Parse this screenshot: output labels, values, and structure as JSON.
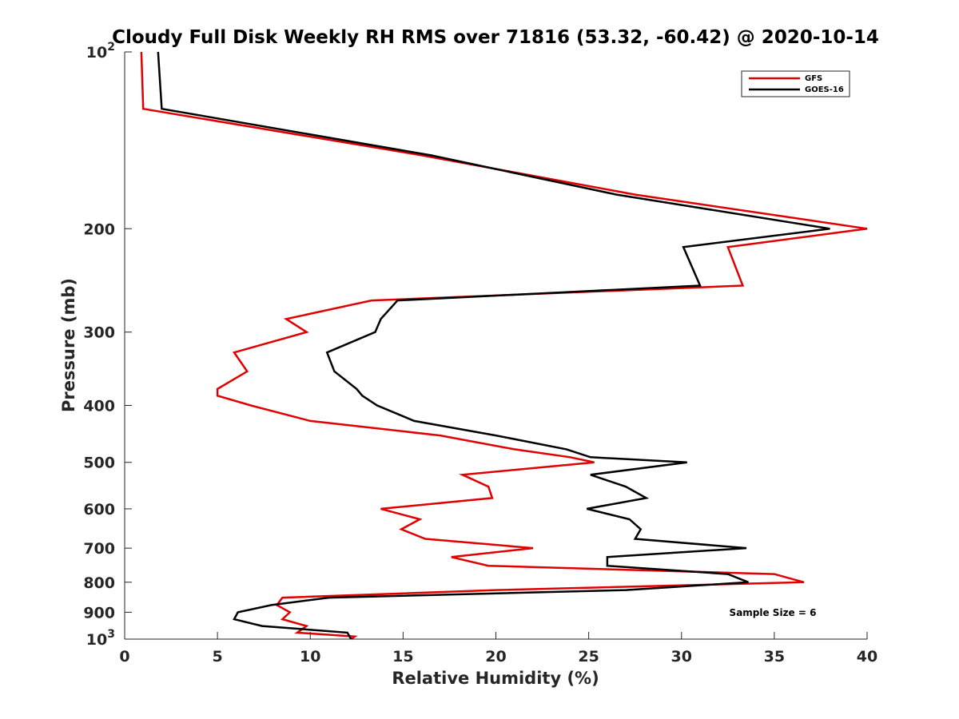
{
  "chart_data": {
    "type": "line",
    "title": "Cloudy Full Disk Weekly RH RMS over 71816 (53.32, -60.42) @ 2020-10-14",
    "xlabel": "Relative Humidity (%)",
    "ylabel": "Pressure (mb)",
    "xlim": [
      0,
      40
    ],
    "ylim": [
      100,
      1000
    ],
    "y_scale": "log",
    "y_reversed": true,
    "grid": false,
    "legend_position": "top-right",
    "x_ticks": [
      "0",
      "5",
      "10",
      "15",
      "20",
      "25",
      "30",
      "35",
      "40"
    ],
    "y_ticks": [
      {
        "value": 100,
        "base": "10",
        "exp": "2"
      },
      {
        "value": 200,
        "label": "200"
      },
      {
        "value": 300,
        "label": "300"
      },
      {
        "value": 400,
        "label": "400"
      },
      {
        "value": 500,
        "label": "500"
      },
      {
        "value": 600,
        "label": "600"
      },
      {
        "value": 700,
        "label": "700"
      },
      {
        "value": 800,
        "label": "800"
      },
      {
        "value": 900,
        "label": "900"
      },
      {
        "value": 1000,
        "base": "10",
        "exp": "3"
      }
    ],
    "annotation": "Sample Size = 6",
    "series": [
      {
        "name": "GFS",
        "color": "#e00000",
        "points": [
          [
            0.9,
            100
          ],
          [
            1.0,
            125
          ],
          [
            16.0,
            150
          ],
          [
            27.5,
            175
          ],
          [
            40.0,
            200
          ],
          [
            32.5,
            215
          ],
          [
            33.3,
            250
          ],
          [
            13.3,
            265
          ],
          [
            8.7,
            285
          ],
          [
            9.8,
            300
          ],
          [
            5.9,
            325
          ],
          [
            6.6,
            350
          ],
          [
            5.0,
            375
          ],
          [
            5.0,
            385
          ],
          [
            6.8,
            400
          ],
          [
            10.0,
            425
          ],
          [
            17.0,
            450
          ],
          [
            21.0,
            475
          ],
          [
            24.0,
            490
          ],
          [
            25.3,
            500
          ],
          [
            18.2,
            525
          ],
          [
            19.6,
            550
          ],
          [
            19.8,
            575
          ],
          [
            13.8,
            600
          ],
          [
            15.9,
            625
          ],
          [
            14.9,
            650
          ],
          [
            16.2,
            675
          ],
          [
            22.0,
            700
          ],
          [
            17.6,
            725
          ],
          [
            19.6,
            750
          ],
          [
            35.0,
            775
          ],
          [
            36.6,
            800
          ],
          [
            20.0,
            825
          ],
          [
            8.5,
            850
          ],
          [
            8.2,
            875
          ],
          [
            8.9,
            900
          ],
          [
            8.5,
            925
          ],
          [
            9.8,
            950
          ],
          [
            9.3,
            975
          ],
          [
            12.4,
            990
          ],
          [
            12.2,
            1000
          ]
        ]
      },
      {
        "name": "GOES-16",
        "color": "#000000",
        "points": [
          [
            1.8,
            100
          ],
          [
            2.0,
            125
          ],
          [
            16.5,
            150
          ],
          [
            26.5,
            175
          ],
          [
            38.0,
            200
          ],
          [
            30.1,
            215
          ],
          [
            31.0,
            250
          ],
          [
            14.7,
            265
          ],
          [
            13.8,
            285
          ],
          [
            13.5,
            300
          ],
          [
            10.9,
            325
          ],
          [
            11.3,
            350
          ],
          [
            12.5,
            375
          ],
          [
            12.8,
            385
          ],
          [
            13.6,
            400
          ],
          [
            15.6,
            425
          ],
          [
            20.0,
            450
          ],
          [
            23.8,
            475
          ],
          [
            25.1,
            490
          ],
          [
            30.3,
            500
          ],
          [
            25.1,
            525
          ],
          [
            27.0,
            550
          ],
          [
            28.1,
            575
          ],
          [
            24.9,
            600
          ],
          [
            27.2,
            625
          ],
          [
            27.8,
            650
          ],
          [
            27.5,
            675
          ],
          [
            33.5,
            700
          ],
          [
            26.0,
            725
          ],
          [
            26.0,
            750
          ],
          [
            32.5,
            775
          ],
          [
            33.6,
            800
          ],
          [
            27.0,
            825
          ],
          [
            11.0,
            850
          ],
          [
            7.9,
            875
          ],
          [
            6.1,
            900
          ],
          [
            5.9,
            925
          ],
          [
            7.4,
            950
          ],
          [
            12.0,
            975
          ],
          [
            12.2,
            1000
          ]
        ]
      }
    ]
  }
}
